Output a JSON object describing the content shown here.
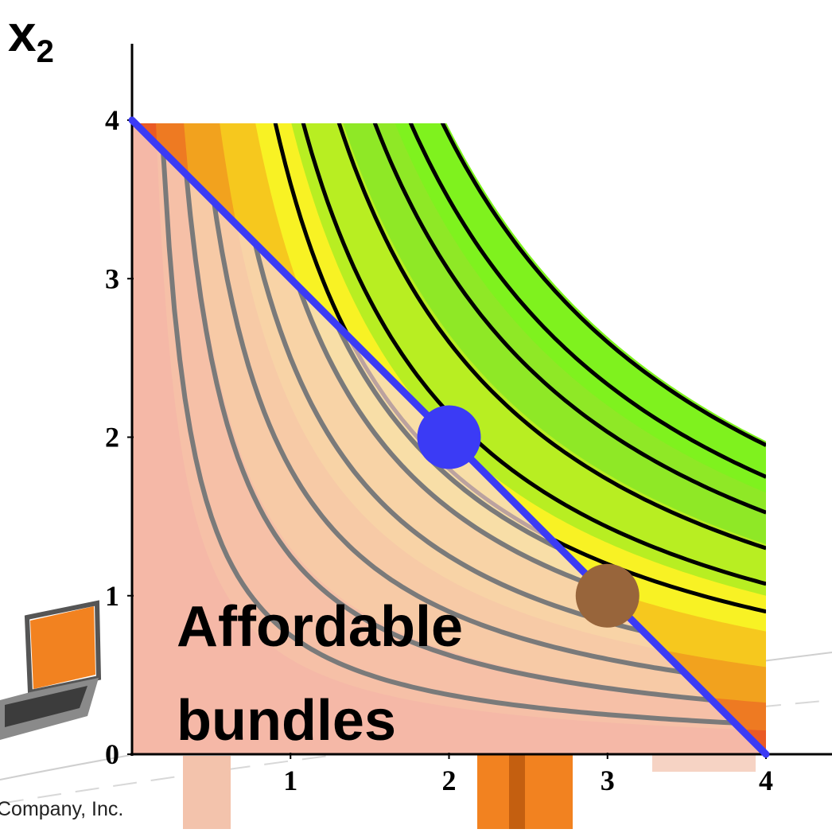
{
  "chart_data": {
    "type": "contour",
    "ylabel": "x",
    "ylabel_sub": "2",
    "xlim": [
      0,
      4
    ],
    "ylim": [
      0,
      4
    ],
    "x_ticks": [
      "1",
      "2",
      "3",
      "4"
    ],
    "y_ticks": [
      "0",
      "1",
      "2",
      "3",
      "4"
    ],
    "budget_line": {
      "x": [
        0,
        4
      ],
      "y": [
        4,
        0
      ],
      "color": "#3b3bf5"
    },
    "indifference_levels": {
      "affordable_gray": [
        0.75,
        1.25,
        1.8,
        2.5,
        3.1,
        3.5
      ],
      "black": [
        4.3,
        5.2,
        6.1,
        7.0,
        7.8
      ]
    },
    "points": [
      {
        "name": "optimal-bundle",
        "x": 2,
        "y": 2,
        "color": "#3b3bf5"
      },
      {
        "name": "other-bundle",
        "x": 3,
        "y": 1,
        "color": "#98653b"
      }
    ],
    "region_label_lines": [
      "Affordable",
      "bundles"
    ],
    "colors": {
      "green": "#7ff21e",
      "yellow": "#f8f224",
      "orange": "#f2a21e",
      "red": "#ea5a24",
      "affordable_fill": "#f0a8a0"
    }
  },
  "footer": {
    "copyright": "Company, Inc."
  }
}
